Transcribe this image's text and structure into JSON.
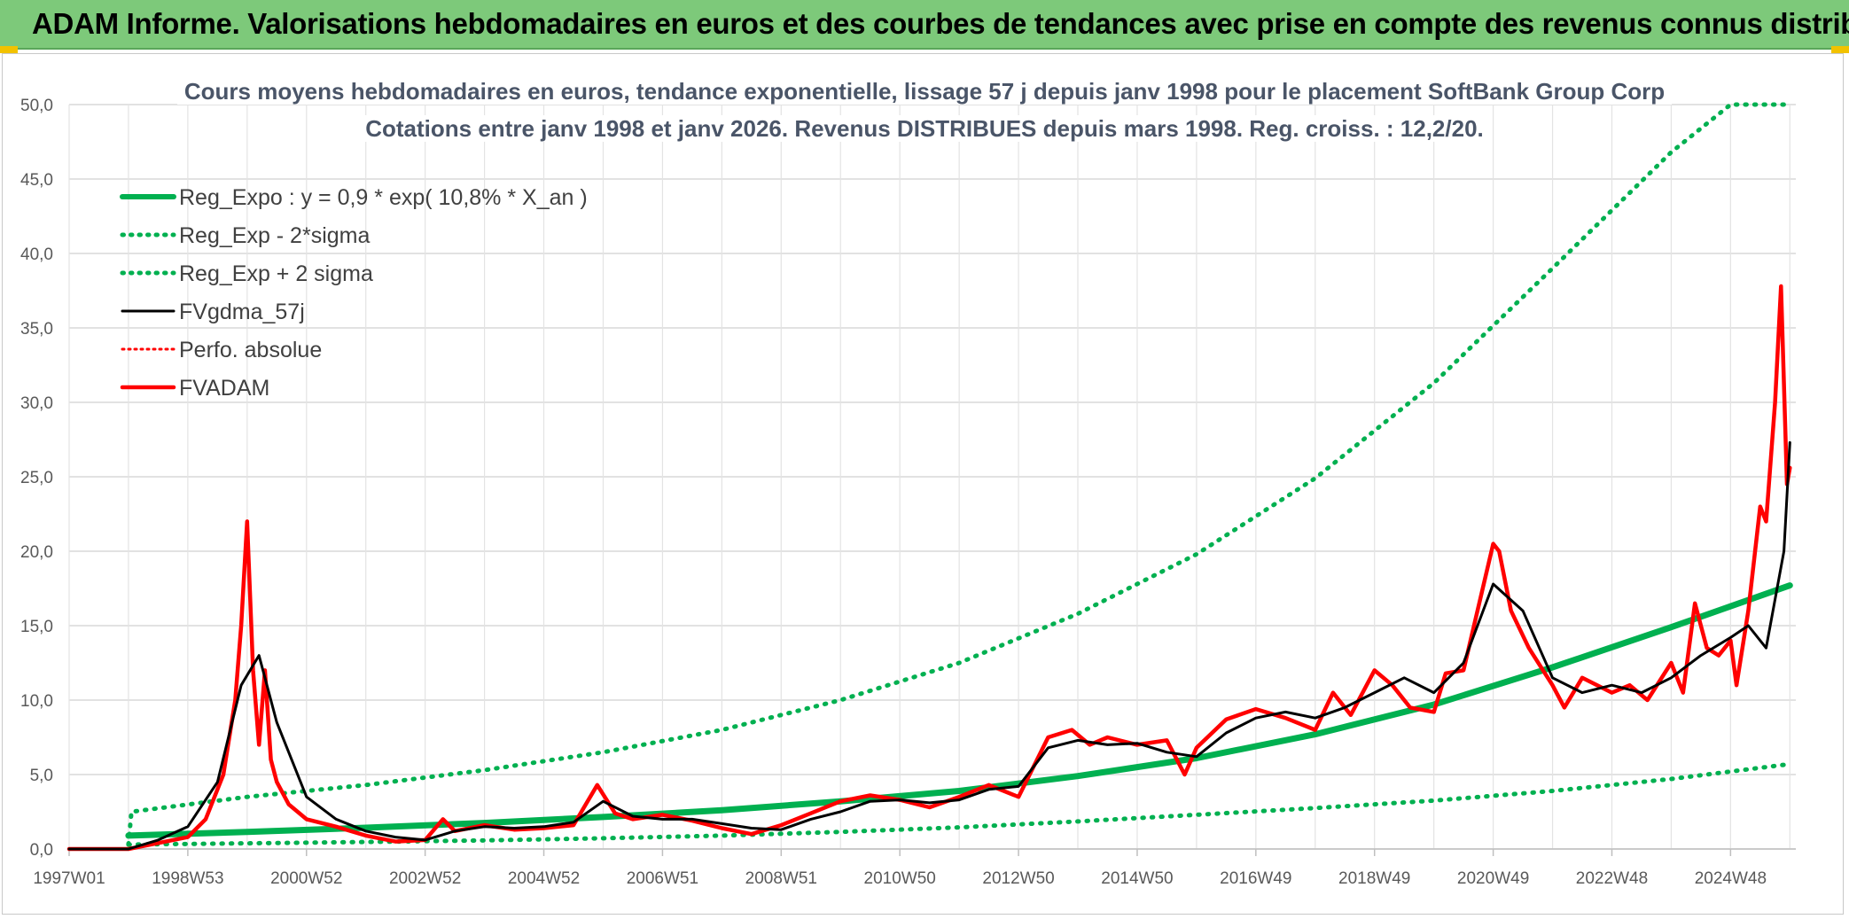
{
  "header": {
    "title": "ADAM Informe. Valorisations hebdomadaires en euros et des courbes de tendances avec prise en compte des revenus connus distribués"
  },
  "colors": {
    "banner": "#7dc97a",
    "regression": "#00b050",
    "smooth": "#000000",
    "adam": "#ff0000"
  },
  "chart_data": {
    "type": "line",
    "title": "Cours moyens hebdomadaires en euros, tendance exponentielle, lissage 57 j depuis janv 1998 pour le placement SoftBank Group Corp",
    "subtitle": "Cotations entre janv 1998 et janv 2026. Revenus DISTRIBUES depuis mars 1998. Reg. croiss. : 12,2/20.",
    "xlabel": "",
    "ylabel": "",
    "xlim": [
      1997.0,
      2026.1
    ],
    "ylim": [
      0,
      50
    ],
    "y_ticks": [
      "0,0",
      "5,0",
      "10,0",
      "15,0",
      "20,0",
      "25,0",
      "30,0",
      "35,0",
      "40,0",
      "45,0",
      "50,0"
    ],
    "x_ticks": [
      {
        "label": "1997W01",
        "x": 1997.0
      },
      {
        "label": "1998W53",
        "x": 1999.0
      },
      {
        "label": "2000W52",
        "x": 2001.0
      },
      {
        "label": "2002W52",
        "x": 2003.0
      },
      {
        "label": "2004W52",
        "x": 2005.0
      },
      {
        "label": "2006W51",
        "x": 2007.0
      },
      {
        "label": "2008W51",
        "x": 2009.0
      },
      {
        "label": "2010W50",
        "x": 2011.0
      },
      {
        "label": "2012W50",
        "x": 2013.0
      },
      {
        "label": "2014W50",
        "x": 2015.0
      },
      {
        "label": "2016W49",
        "x": 2017.0
      },
      {
        "label": "2018W49",
        "x": 2019.0
      },
      {
        "label": "2020W49",
        "x": 2021.0
      },
      {
        "label": "2022W48",
        "x": 2023.0
      },
      {
        "label": "2024W48",
        "x": 2025.0
      }
    ],
    "legend_position": "top-left",
    "series": [
      {
        "name": "Reg_Expo : y = 0,9 * exp( 10,8% *  X_an )",
        "style": "solid",
        "color": "#00b050",
        "x": [
          1998.0,
          2000,
          2002,
          2004,
          2006,
          2008,
          2010,
          2012,
          2014,
          2016,
          2018,
          2020,
          2022,
          2024,
          2026.0
        ],
        "values": [
          0.9,
          1.15,
          1.43,
          1.75,
          2.15,
          2.6,
          3.2,
          3.9,
          4.9,
          6.1,
          7.7,
          9.7,
          12.2,
          14.9,
          17.7
        ]
      },
      {
        "name": "Reg_Exp - 2*sigma",
        "style": "dotted",
        "color": "#00b050",
        "x": [
          1998.0,
          2000,
          2002,
          2004,
          2006,
          2008,
          2010,
          2012,
          2014,
          2016,
          2018,
          2020,
          2022,
          2024,
          2026.0
        ],
        "values": [
          0.3,
          0.38,
          0.47,
          0.58,
          0.72,
          0.9,
          1.15,
          1.45,
          1.85,
          2.3,
          2.75,
          3.25,
          3.9,
          4.7,
          5.7
        ]
      },
      {
        "name": "Reg_Exp + 2 sigma",
        "style": "dotted",
        "color": "#00b050",
        "x": [
          1998.0,
          1998.05,
          2000,
          2002,
          2004,
          2006,
          2008,
          2010,
          2012,
          2014,
          2016,
          2018,
          2020,
          2022,
          2024,
          2025.0,
          2026.0
        ],
        "values": [
          0.3,
          2.5,
          3.5,
          4.3,
          5.3,
          6.5,
          8.0,
          10.0,
          12.5,
          15.8,
          19.8,
          24.9,
          31.3,
          39.0,
          46.8,
          50.0,
          50.0
        ]
      },
      {
        "name": "FVgdma_57j",
        "style": "solid",
        "color": "#000000",
        "x": [
          1997.0,
          1998.0,
          1998.5,
          1999.0,
          1999.5,
          1999.9,
          2000.2,
          2000.5,
          2001.0,
          2001.5,
          2002.0,
          2002.5,
          2003.0,
          2003.5,
          2004.0,
          2004.5,
          2005.0,
          2005.5,
          2006.0,
          2006.5,
          2007.0,
          2007.5,
          2008.0,
          2008.5,
          2009.0,
          2009.5,
          2010.0,
          2010.5,
          2011.0,
          2011.5,
          2012.0,
          2012.5,
          2013.0,
          2013.5,
          2014.0,
          2014.5,
          2015.0,
          2015.5,
          2016.0,
          2016.5,
          2017.0,
          2017.5,
          2018.0,
          2018.5,
          2019.0,
          2019.5,
          2020.0,
          2020.5,
          2021.0,
          2021.5,
          2022.0,
          2022.5,
          2023.0,
          2023.5,
          2024.0,
          2024.5,
          2025.0,
          2025.3,
          2025.6,
          2025.9,
          2026.0
        ],
        "values": [
          0,
          0,
          0.6,
          1.5,
          4.5,
          11.0,
          13.0,
          8.5,
          3.5,
          2.0,
          1.2,
          0.8,
          0.6,
          1.2,
          1.5,
          1.4,
          1.5,
          1.8,
          3.2,
          2.2,
          2.0,
          2.0,
          1.7,
          1.4,
          1.3,
          2.0,
          2.5,
          3.2,
          3.3,
          3.1,
          3.3,
          4.0,
          4.2,
          6.8,
          7.3,
          7.0,
          7.1,
          6.5,
          6.2,
          7.8,
          8.8,
          9.2,
          8.8,
          9.5,
          10.5,
          11.5,
          10.5,
          12.5,
          17.8,
          16.0,
          11.5,
          10.5,
          11.0,
          10.5,
          11.5,
          13.0,
          14.2,
          15.0,
          13.5,
          20.0,
          27.3
        ]
      },
      {
        "name": "Perfo. absolue",
        "style": "dotted",
        "color": "#ff0000",
        "x": [],
        "values": []
      },
      {
        "name": "FVADAM",
        "style": "solid",
        "color": "#ff0000",
        "x": [
          1997.0,
          1998.0,
          1998.5,
          1999.0,
          1999.3,
          1999.6,
          1999.8,
          1999.9,
          2000.0,
          2000.1,
          2000.2,
          2000.3,
          2000.4,
          2000.5,
          2000.7,
          2001.0,
          2001.5,
          2002.0,
          2002.5,
          2003.0,
          2003.3,
          2003.5,
          2004.0,
          2004.5,
          2005.0,
          2005.5,
          2005.9,
          2006.2,
          2006.5,
          2007.0,
          2007.5,
          2008.0,
          2008.5,
          2009.0,
          2009.5,
          2010.0,
          2010.5,
          2011.0,
          2011.5,
          2012.0,
          2012.5,
          2013.0,
          2013.5,
          2013.9,
          2014.2,
          2014.5,
          2015.0,
          2015.5,
          2015.8,
          2016.0,
          2016.5,
          2017.0,
          2017.5,
          2018.0,
          2018.3,
          2018.6,
          2019.0,
          2019.3,
          2019.6,
          2020.0,
          2020.2,
          2020.5,
          2021.0,
          2021.1,
          2021.3,
          2021.6,
          2022.0,
          2022.2,
          2022.5,
          2023.0,
          2023.3,
          2023.6,
          2024.0,
          2024.2,
          2024.4,
          2024.6,
          2024.8,
          2025.0,
          2025.1,
          2025.3,
          2025.5,
          2025.6,
          2025.75,
          2025.85,
          2025.95,
          2026.0
        ],
        "values": [
          0,
          0,
          0.4,
          0.8,
          2.0,
          5.0,
          10.0,
          15.0,
          22.0,
          12.0,
          7.0,
          12.0,
          6.0,
          4.5,
          3.0,
          2.0,
          1.5,
          0.9,
          0.5,
          0.6,
          2.0,
          1.2,
          1.6,
          1.3,
          1.4,
          1.6,
          4.3,
          2.4,
          2.0,
          2.3,
          1.9,
          1.4,
          1.0,
          1.6,
          2.4,
          3.2,
          3.6,
          3.3,
          2.8,
          3.5,
          4.3,
          3.5,
          7.5,
          8.0,
          7.0,
          7.5,
          7.0,
          7.3,
          5.0,
          6.8,
          8.7,
          9.4,
          8.8,
          8.0,
          10.5,
          9.0,
          12.0,
          11.0,
          9.5,
          9.2,
          11.8,
          12.0,
          20.5,
          20.0,
          16.0,
          13.5,
          11.0,
          9.5,
          11.5,
          10.5,
          11.0,
          10.0,
          12.5,
          10.5,
          16.5,
          13.5,
          13.0,
          14.0,
          11.0,
          16.0,
          23.0,
          22.0,
          30.0,
          37.8,
          24.5,
          25.6
        ]
      }
    ]
  }
}
